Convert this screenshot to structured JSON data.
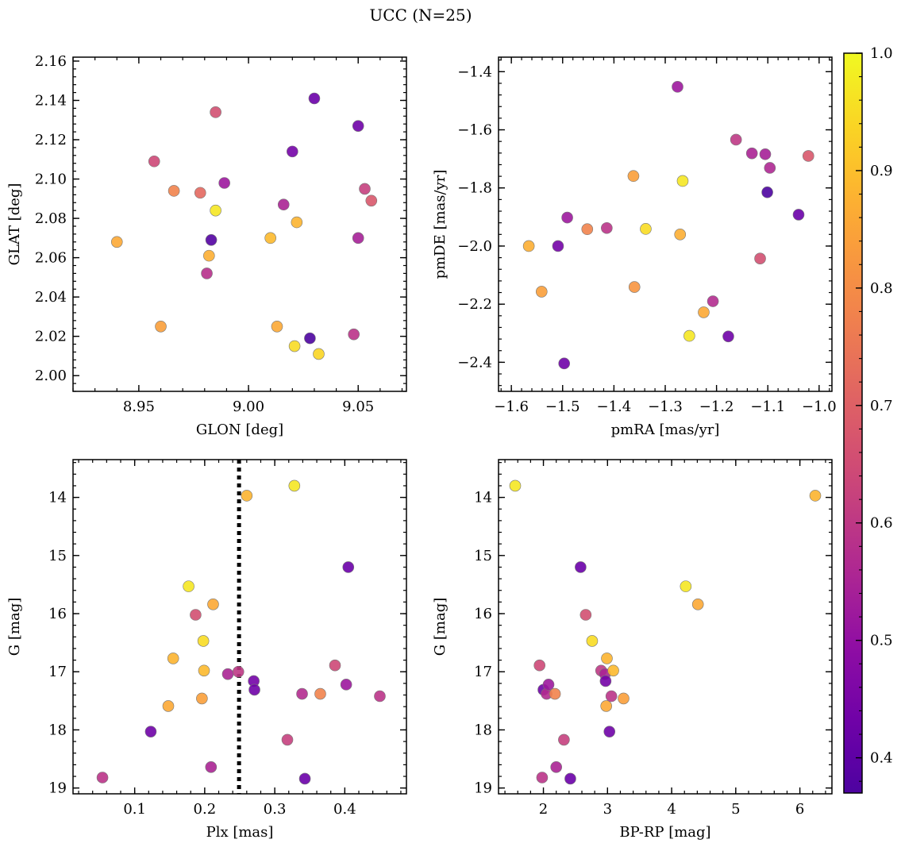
{
  "figure": {
    "title": "UCC (N=25)"
  },
  "colorbar": {
    "colormap": "plasma",
    "range": [
      0.37,
      1.0
    ],
    "ticks": [
      0.4,
      0.5,
      0.6,
      0.7,
      0.8,
      0.9,
      1.0
    ],
    "tick_labels": [
      "0.4",
      "0.5",
      "0.6",
      "0.7",
      "0.8",
      "0.9",
      "1.0"
    ]
  },
  "chart_data": [
    {
      "type": "scatter",
      "panel": "top-left",
      "xlabel": "GLON [deg]",
      "ylabel": "GLAT [deg]",
      "xlim": [
        8.92,
        9.072
      ],
      "ylim": [
        1.992,
        2.162
      ],
      "y_inverted": false,
      "xticks": [
        8.95,
        9.0,
        9.05
      ],
      "xtick_labels": [
        "8.95",
        "9.00",
        "9.05"
      ],
      "x_minor_step": 0.01,
      "yticks": [
        2.0,
        2.02,
        2.04,
        2.06,
        2.08,
        2.1,
        2.12,
        2.14,
        2.16
      ],
      "ytick_labels": [
        "2.00",
        "2.02",
        "2.04",
        "2.06",
        "2.08",
        "2.10",
        "2.12",
        "2.14",
        "2.16"
      ],
      "y_minor_step": 0.004,
      "grid": false,
      "points": [
        {
          "x": 8.94,
          "y": 2.068,
          "c": 0.86
        },
        {
          "x": 8.957,
          "y": 2.109,
          "c": 0.64
        },
        {
          "x": 8.96,
          "y": 2.025,
          "c": 0.84
        },
        {
          "x": 8.966,
          "y": 2.094,
          "c": 0.78
        },
        {
          "x": 8.978,
          "y": 2.093,
          "c": 0.72
        },
        {
          "x": 8.981,
          "y": 2.052,
          "c": 0.58
        },
        {
          "x": 8.982,
          "y": 2.061,
          "c": 0.87
        },
        {
          "x": 8.983,
          "y": 2.069,
          "c": 0.38
        },
        {
          "x": 8.985,
          "y": 2.084,
          "c": 0.97
        },
        {
          "x": 8.985,
          "y": 2.134,
          "c": 0.66
        },
        {
          "x": 8.989,
          "y": 2.098,
          "c": 0.52
        },
        {
          "x": 9.01,
          "y": 2.07,
          "c": 0.89
        },
        {
          "x": 9.013,
          "y": 2.025,
          "c": 0.86
        },
        {
          "x": 9.016,
          "y": 2.087,
          "c": 0.55
        },
        {
          "x": 9.02,
          "y": 2.114,
          "c": 0.44
        },
        {
          "x": 9.021,
          "y": 2.015,
          "c": 0.95
        },
        {
          "x": 9.022,
          "y": 2.078,
          "c": 0.88
        },
        {
          "x": 9.028,
          "y": 2.019,
          "c": 0.37
        },
        {
          "x": 9.03,
          "y": 2.141,
          "c": 0.42
        },
        {
          "x": 9.032,
          "y": 2.011,
          "c": 0.94
        },
        {
          "x": 9.048,
          "y": 2.021,
          "c": 0.59
        },
        {
          "x": 9.05,
          "y": 2.127,
          "c": 0.43
        },
        {
          "x": 9.05,
          "y": 2.07,
          "c": 0.54
        },
        {
          "x": 9.053,
          "y": 2.095,
          "c": 0.62
        },
        {
          "x": 9.056,
          "y": 2.089,
          "c": 0.68
        }
      ]
    },
    {
      "type": "scatter",
      "panel": "top-right",
      "xlabel": "pmRA [mas/yr]",
      "ylabel": "pmDE [mas/yr]",
      "xlim": [
        -1.625,
        -0.975
      ],
      "ylim": [
        -2.5,
        -1.35
      ],
      "y_inverted": false,
      "xticks": [
        -1.6,
        -1.5,
        -1.4,
        -1.3,
        -1.2,
        -1.1,
        -1.0
      ],
      "xtick_labels": [
        "−1.6",
        "−1.5",
        "−1.4",
        "−1.3",
        "−1.2",
        "−1.1",
        "−1.0"
      ],
      "x_minor_step": 0.02,
      "yticks": [
        -2.4,
        -2.2,
        -2.0,
        -1.8,
        -1.6,
        -1.4
      ],
      "ytick_labels": [
        "−2.4",
        "−2.2",
        "−2.0",
        "−1.8",
        "−1.6",
        "−1.4"
      ],
      "y_minor_step": 0.04,
      "grid": false,
      "points": [
        {
          "x": -1.566,
          "y": -2.0,
          "c": 0.87
        },
        {
          "x": -1.541,
          "y": -2.157,
          "c": 0.84
        },
        {
          "x": -1.509,
          "y": -2.0,
          "c": 0.44
        },
        {
          "x": -1.497,
          "y": -2.404,
          "c": 0.43
        },
        {
          "x": -1.491,
          "y": -1.902,
          "c": 0.52
        },
        {
          "x": -1.452,
          "y": -1.942,
          "c": 0.78
        },
        {
          "x": -1.414,
          "y": -1.938,
          "c": 0.59
        },
        {
          "x": -1.362,
          "y": -1.759,
          "c": 0.84
        },
        {
          "x": -1.36,
          "y": -2.141,
          "c": 0.82
        },
        {
          "x": -1.338,
          "y": -1.941,
          "c": 0.95
        },
        {
          "x": -1.276,
          "y": -1.452,
          "c": 0.52
        },
        {
          "x": -1.271,
          "y": -1.96,
          "c": 0.87
        },
        {
          "x": -1.266,
          "y": -1.776,
          "c": 0.97
        },
        {
          "x": -1.253,
          "y": -2.309,
          "c": 0.97
        },
        {
          "x": -1.225,
          "y": -2.228,
          "c": 0.86
        },
        {
          "x": -1.207,
          "y": -2.19,
          "c": 0.57
        },
        {
          "x": -1.177,
          "y": -2.311,
          "c": 0.43
        },
        {
          "x": -1.162,
          "y": -1.634,
          "c": 0.6
        },
        {
          "x": -1.131,
          "y": -1.681,
          "c": 0.55
        },
        {
          "x": -1.115,
          "y": -2.043,
          "c": 0.66
        },
        {
          "x": -1.105,
          "y": -1.684,
          "c": 0.54
        },
        {
          "x": -1.101,
          "y": -1.815,
          "c": 0.37
        },
        {
          "x": -1.096,
          "y": -1.731,
          "c": 0.56
        },
        {
          "x": -1.04,
          "y": -1.892,
          "c": 0.42
        },
        {
          "x": -1.021,
          "y": -1.69,
          "c": 0.68
        }
      ]
    },
    {
      "type": "scatter",
      "panel": "bottom-left",
      "xlabel": "Plx [mas]",
      "ylabel": "G [mag]",
      "xlim": [
        0.012,
        0.488
      ],
      "ylim": [
        19.1,
        13.35
      ],
      "y_inverted": true,
      "xticks": [
        0.1,
        0.2,
        0.3,
        0.4
      ],
      "xtick_labels": [
        "0.1",
        "0.2",
        "0.3",
        "0.4"
      ],
      "x_minor_step": 0.02,
      "yticks": [
        14,
        15,
        16,
        17,
        18,
        19
      ],
      "ytick_labels": [
        "14",
        "15",
        "16",
        "17",
        "18",
        "19"
      ],
      "y_minor_step": 0.2,
      "grid": false,
      "vline": {
        "x": 0.249,
        "style": "dotted",
        "color": "#000000"
      },
      "points": [
        {
          "x": 0.054,
          "y": 18.82,
          "c": 0.59
        },
        {
          "x": 0.123,
          "y": 18.03,
          "c": 0.43
        },
        {
          "x": 0.148,
          "y": 17.59,
          "c": 0.86
        },
        {
          "x": 0.155,
          "y": 16.77,
          "c": 0.88
        },
        {
          "x": 0.177,
          "y": 15.53,
          "c": 0.97
        },
        {
          "x": 0.187,
          "y": 16.02,
          "c": 0.66
        },
        {
          "x": 0.196,
          "y": 17.46,
          "c": 0.84
        },
        {
          "x": 0.198,
          "y": 16.47,
          "c": 0.95
        },
        {
          "x": 0.199,
          "y": 16.98,
          "c": 0.89
        },
        {
          "x": 0.209,
          "y": 18.64,
          "c": 0.55
        },
        {
          "x": 0.212,
          "y": 15.84,
          "c": 0.86
        },
        {
          "x": 0.233,
          "y": 17.04,
          "c": 0.55
        },
        {
          "x": 0.248,
          "y": 17.0,
          "c": 0.6
        },
        {
          "x": 0.26,
          "y": 13.97,
          "c": 0.88
        },
        {
          "x": 0.27,
          "y": 17.16,
          "c": 0.44
        },
        {
          "x": 0.271,
          "y": 17.31,
          "c": 0.43
        },
        {
          "x": 0.318,
          "y": 18.17,
          "c": 0.62
        },
        {
          "x": 0.328,
          "y": 13.8,
          "c": 0.97
        },
        {
          "x": 0.339,
          "y": 17.38,
          "c": 0.57
        },
        {
          "x": 0.343,
          "y": 18.84,
          "c": 0.42
        },
        {
          "x": 0.365,
          "y": 17.38,
          "c": 0.78
        },
        {
          "x": 0.386,
          "y": 16.89,
          "c": 0.64
        },
        {
          "x": 0.402,
          "y": 17.22,
          "c": 0.52
        },
        {
          "x": 0.405,
          "y": 15.2,
          "c": 0.42
        },
        {
          "x": 0.45,
          "y": 17.42,
          "c": 0.59
        }
      ]
    },
    {
      "type": "scatter",
      "panel": "bottom-right",
      "xlabel": "BP-RP [mag]",
      "ylabel": "G [mag]",
      "xlim": [
        1.3,
        6.5
      ],
      "ylim": [
        19.1,
        13.35
      ],
      "y_inverted": true,
      "xticks": [
        2,
        3,
        4,
        5,
        6
      ],
      "xtick_labels": [
        "2",
        "3",
        "4",
        "5",
        "6"
      ],
      "x_minor_step": 0.2,
      "yticks": [
        14,
        15,
        16,
        17,
        18,
        19
      ],
      "ytick_labels": [
        "14",
        "15",
        "16",
        "17",
        "18",
        "19"
      ],
      "y_minor_step": 0.2,
      "grid": false,
      "points": [
        {
          "x": 1.56,
          "y": 13.8,
          "c": 0.97
        },
        {
          "x": 1.94,
          "y": 16.89,
          "c": 0.64
        },
        {
          "x": 1.98,
          "y": 18.82,
          "c": 0.59
        },
        {
          "x": 2.0,
          "y": 17.31,
          "c": 0.43
        },
        {
          "x": 2.05,
          "y": 17.38,
          "c": 0.57
        },
        {
          "x": 2.08,
          "y": 17.22,
          "c": 0.52
        },
        {
          "x": 2.18,
          "y": 17.38,
          "c": 0.78
        },
        {
          "x": 2.2,
          "y": 18.64,
          "c": 0.55
        },
        {
          "x": 2.32,
          "y": 18.17,
          "c": 0.62
        },
        {
          "x": 2.42,
          "y": 18.84,
          "c": 0.42
        },
        {
          "x": 2.58,
          "y": 15.2,
          "c": 0.42
        },
        {
          "x": 2.66,
          "y": 16.02,
          "c": 0.66
        },
        {
          "x": 2.76,
          "y": 16.47,
          "c": 0.95
        },
        {
          "x": 2.9,
          "y": 16.98,
          "c": 0.6
        },
        {
          "x": 2.96,
          "y": 17.04,
          "c": 0.55
        },
        {
          "x": 2.97,
          "y": 17.16,
          "c": 0.44
        },
        {
          "x": 2.98,
          "y": 17.59,
          "c": 0.86
        },
        {
          "x": 2.99,
          "y": 16.77,
          "c": 0.88
        },
        {
          "x": 3.03,
          "y": 18.03,
          "c": 0.43
        },
        {
          "x": 3.06,
          "y": 17.42,
          "c": 0.59
        },
        {
          "x": 3.09,
          "y": 16.98,
          "c": 0.89
        },
        {
          "x": 3.25,
          "y": 17.46,
          "c": 0.84
        },
        {
          "x": 4.22,
          "y": 15.53,
          "c": 0.97
        },
        {
          "x": 4.41,
          "y": 15.84,
          "c": 0.86
        },
        {
          "x": 6.24,
          "y": 13.97,
          "c": 0.88
        }
      ]
    }
  ]
}
